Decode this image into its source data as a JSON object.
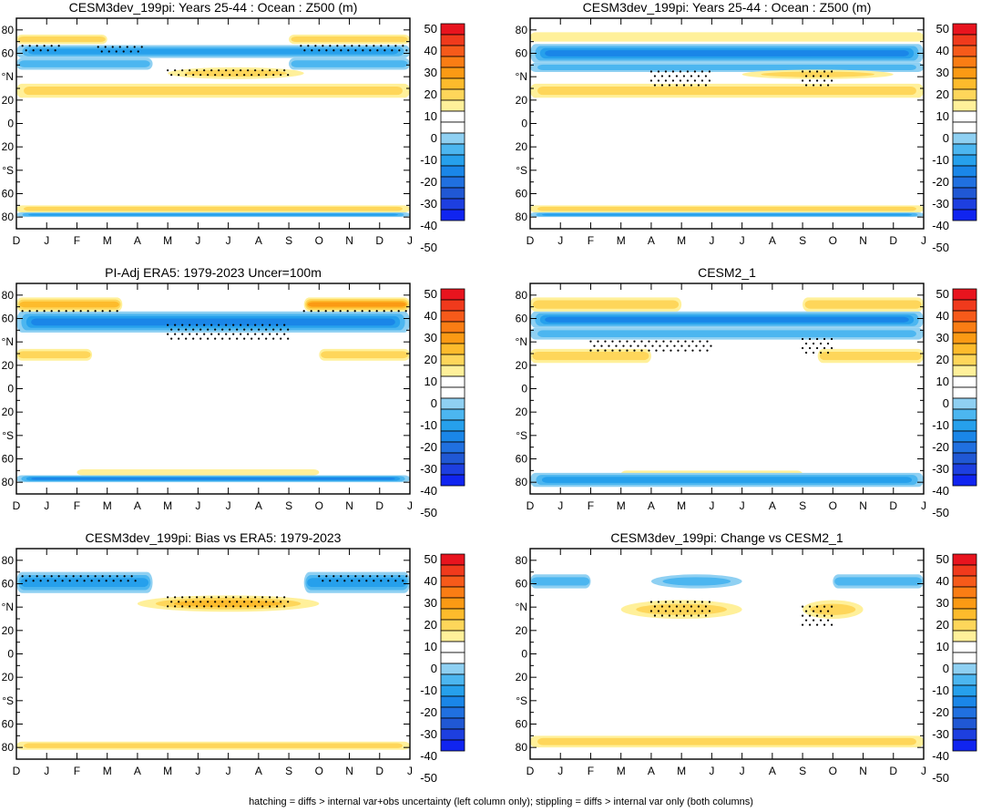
{
  "figure": {
    "footnote": "hatching = diffs > internal var+obs uncertainty (left column only); stippling = diffs > internal var only (both columns)"
  },
  "colorbar": {
    "levels": [
      50,
      40,
      30,
      20,
      10,
      0,
      -10,
      -20,
      -30,
      -40,
      -50
    ],
    "labels": [
      "50",
      "40",
      "30",
      "20",
      "10",
      "0",
      "-10",
      "-20",
      "-30",
      "-40",
      "-50"
    ],
    "colors": [
      "#e8141e",
      "#f03a1c",
      "#f65a1a",
      "#fa7d14",
      "#fb9a14",
      "#fdbb2c",
      "#fed65a",
      "#fff09a",
      "#ffffff",
      "#ffffff",
      "#8fd0f2",
      "#4cb6f0",
      "#26a0ec",
      "#1a86e8",
      "#2070e0",
      "#2058d4",
      "#1d3fe0",
      "#1024f0"
    ]
  },
  "axes": {
    "x_labels": [
      "D",
      "J",
      "F",
      "M",
      "A",
      "M",
      "J",
      "J",
      "A",
      "S",
      "O",
      "N",
      "D",
      "J"
    ],
    "y_labels": [
      "80",
      "60",
      "°N",
      "20",
      "0",
      "20",
      "°S",
      "60",
      "80"
    ]
  },
  "chart_data": [
    {
      "type": "heatmap",
      "id": "p1",
      "title": "CESM3dev_199pi: Years 25-44 : Ocean : Z500 (m)",
      "xlabel": "",
      "ylabel": "",
      "ylim": [
        -90,
        90
      ],
      "features": [
        {
          "kind": "band",
          "lat_lo": 56,
          "lat_hi": 67,
          "sign": -1,
          "intensity": 0.55,
          "m_lo": 0,
          "m_hi": 13
        },
        {
          "kind": "band",
          "lat_lo": 46,
          "lat_hi": 56,
          "sign": -1,
          "intensity": 0.35,
          "m_lo": 0,
          "m_hi": 4.5
        },
        {
          "kind": "band",
          "lat_lo": 46,
          "lat_hi": 56,
          "sign": -1,
          "intensity": 0.35,
          "m_lo": 9,
          "m_hi": 13
        },
        {
          "kind": "band",
          "lat_lo": 68,
          "lat_hi": 76,
          "sign": 1,
          "intensity": 0.25,
          "m_lo": 0,
          "m_hi": 3
        },
        {
          "kind": "band",
          "lat_lo": 68,
          "lat_hi": 76,
          "sign": 1,
          "intensity": 0.25,
          "m_lo": 9,
          "m_hi": 13
        },
        {
          "kind": "band",
          "lat_lo": 22,
          "lat_hi": 34,
          "sign": 1,
          "intensity": 0.3,
          "m_lo": 0,
          "m_hi": 13
        },
        {
          "kind": "blob",
          "lat_lo": 38,
          "lat_hi": 48,
          "sign": 1,
          "intensity": 0.3,
          "m_lo": 5,
          "m_hi": 9.5
        },
        {
          "kind": "band",
          "lat_lo": -76,
          "lat_hi": -70,
          "sign": 1,
          "intensity": 0.25,
          "m_lo": 0,
          "m_hi": 13
        },
        {
          "kind": "band",
          "lat_lo": -80,
          "lat_hi": -76,
          "sign": -1,
          "intensity": 0.55,
          "m_lo": 0,
          "m_hi": 13
        }
      ],
      "stipple": [
        {
          "m_lo": 0.2,
          "m_hi": 1.5,
          "lat_lo": 60,
          "lat_hi": 68
        },
        {
          "m_lo": 2.7,
          "m_hi": 4.2,
          "lat_lo": 60,
          "lat_hi": 67
        },
        {
          "m_lo": 5,
          "m_hi": 9,
          "lat_lo": 38,
          "lat_hi": 47
        },
        {
          "m_lo": 9.4,
          "m_hi": 13,
          "lat_lo": 60,
          "lat_hi": 68
        }
      ]
    },
    {
      "type": "heatmap",
      "id": "p2",
      "title": "CESM3dev_199pi: Years 25-44 : Ocean : Z500 (m)",
      "xlabel": "",
      "ylabel": "",
      "ylim": [
        -90,
        90
      ],
      "features": [
        {
          "kind": "band",
          "lat_lo": 52,
          "lat_hi": 68,
          "sign": -1,
          "intensity": 0.6,
          "m_lo": 0,
          "m_hi": 13
        },
        {
          "kind": "band",
          "lat_lo": 44,
          "lat_hi": 52,
          "sign": -1,
          "intensity": 0.35,
          "m_lo": 0,
          "m_hi": 13
        },
        {
          "kind": "band",
          "lat_lo": 70,
          "lat_hi": 78,
          "sign": 1,
          "intensity": 0.2,
          "m_lo": 0,
          "m_hi": 13
        },
        {
          "kind": "band",
          "lat_lo": 22,
          "lat_hi": 34,
          "sign": 1,
          "intensity": 0.3,
          "m_lo": 0,
          "m_hi": 13
        },
        {
          "kind": "blob",
          "lat_lo": 38,
          "lat_hi": 46,
          "sign": 1,
          "intensity": 0.25,
          "m_lo": 7,
          "m_hi": 12
        },
        {
          "kind": "band",
          "lat_lo": -76,
          "lat_hi": -70,
          "sign": 1,
          "intensity": 0.25,
          "m_lo": 0,
          "m_hi": 13
        },
        {
          "kind": "band",
          "lat_lo": -80,
          "lat_hi": -76,
          "sign": -1,
          "intensity": 0.55,
          "m_lo": 0,
          "m_hi": 13
        }
      ],
      "stipple": [
        {
          "m_lo": 4,
          "m_hi": 6,
          "lat_lo": 30,
          "lat_hi": 46
        },
        {
          "m_lo": 9,
          "m_hi": 10,
          "lat_lo": 30,
          "lat_hi": 46
        }
      ]
    },
    {
      "type": "heatmap",
      "id": "p3",
      "title": "PI-Adj ERA5: 1979-2023 Uncer=100m",
      "xlabel": "",
      "ylabel": "",
      "ylim": [
        -90,
        90
      ],
      "features": [
        {
          "kind": "band",
          "lat_lo": 48,
          "lat_hi": 66,
          "sign": -1,
          "intensity": 0.65,
          "m_lo": 0,
          "m_hi": 13
        },
        {
          "kind": "band",
          "lat_lo": 66,
          "lat_hi": 78,
          "sign": 1,
          "intensity": 0.5,
          "m_lo": 0,
          "m_hi": 3.5
        },
        {
          "kind": "band",
          "lat_lo": 66,
          "lat_hi": 78,
          "sign": 1,
          "intensity": 0.6,
          "m_lo": 9.5,
          "m_hi": 13
        },
        {
          "kind": "band",
          "lat_lo": 24,
          "lat_hi": 34,
          "sign": 1,
          "intensity": 0.3,
          "m_lo": 0,
          "m_hi": 2.5
        },
        {
          "kind": "band",
          "lat_lo": 24,
          "lat_hi": 34,
          "sign": 1,
          "intensity": 0.3,
          "m_lo": 10,
          "m_hi": 13
        },
        {
          "kind": "band",
          "lat_lo": -74,
          "lat_hi": -69,
          "sign": 1,
          "intensity": 0.2,
          "m_lo": 2,
          "m_hi": 10
        },
        {
          "kind": "band",
          "lat_lo": -80,
          "lat_hi": -74,
          "sign": -1,
          "intensity": 0.6,
          "m_lo": 0,
          "m_hi": 13
        }
      ],
      "stipple": [
        {
          "m_lo": 0.2,
          "m_hi": 3.5,
          "lat_lo": 64,
          "lat_hi": 68
        },
        {
          "m_lo": 5,
          "m_hi": 9,
          "lat_lo": 42,
          "lat_hi": 56
        },
        {
          "m_lo": 9.5,
          "m_hi": 13,
          "lat_lo": 64,
          "lat_hi": 68
        }
      ]
    },
    {
      "type": "heatmap",
      "id": "p4",
      "title": "CESM2_1",
      "xlabel": "",
      "ylabel": "",
      "ylim": [
        -90,
        90
      ],
      "features": [
        {
          "kind": "band",
          "lat_lo": 52,
          "lat_hi": 66,
          "sign": -1,
          "intensity": 0.6,
          "m_lo": 0,
          "m_hi": 13
        },
        {
          "kind": "band",
          "lat_lo": 42,
          "lat_hi": 52,
          "sign": -1,
          "intensity": 0.3,
          "m_lo": 0,
          "m_hi": 13
        },
        {
          "kind": "band",
          "lat_lo": 66,
          "lat_hi": 78,
          "sign": 1,
          "intensity": 0.3,
          "m_lo": 0,
          "m_hi": 5
        },
        {
          "kind": "band",
          "lat_lo": 66,
          "lat_hi": 78,
          "sign": 1,
          "intensity": 0.3,
          "m_lo": 9,
          "m_hi": 13
        },
        {
          "kind": "band",
          "lat_lo": 22,
          "lat_hi": 34,
          "sign": 1,
          "intensity": 0.3,
          "m_lo": 0,
          "m_hi": 4
        },
        {
          "kind": "band",
          "lat_lo": 22,
          "lat_hi": 34,
          "sign": 1,
          "intensity": 0.3,
          "m_lo": 9.5,
          "m_hi": 13
        },
        {
          "kind": "band",
          "lat_lo": -76,
          "lat_hi": -70,
          "sign": 1,
          "intensity": 0.2,
          "m_lo": 3,
          "m_hi": 9
        },
        {
          "kind": "band",
          "lat_lo": -84,
          "lat_hi": -72,
          "sign": -1,
          "intensity": 0.45,
          "m_lo": 0,
          "m_hi": 13
        }
      ],
      "stipple": [
        {
          "m_lo": 2,
          "m_hi": 6,
          "lat_lo": 30,
          "lat_hi": 42
        },
        {
          "m_lo": 9,
          "m_hi": 10,
          "lat_lo": 28,
          "lat_hi": 44
        }
      ]
    },
    {
      "type": "heatmap",
      "id": "p5",
      "title": "CESM3dev_199pi: Bias vs ERA5: 1979-2023",
      "xlabel": "",
      "ylabel": "",
      "ylim": [
        -90,
        90
      ],
      "features": [
        {
          "kind": "band",
          "lat_lo": 52,
          "lat_hi": 70,
          "sign": -1,
          "intensity": 0.45,
          "m_lo": 0,
          "m_hi": 4.5
        },
        {
          "kind": "band",
          "lat_lo": 52,
          "lat_hi": 70,
          "sign": -1,
          "intensity": 0.45,
          "m_lo": 9.5,
          "m_hi": 13
        },
        {
          "kind": "blob",
          "lat_lo": 36,
          "lat_hi": 50,
          "sign": 1,
          "intensity": 0.45,
          "m_lo": 4,
          "m_hi": 10
        },
        {
          "kind": "band",
          "lat_lo": -82,
          "lat_hi": -75,
          "sign": 1,
          "intensity": 0.3,
          "m_lo": 0,
          "m_hi": 13
        }
      ],
      "stipple": [
        {
          "m_lo": 0.2,
          "m_hi": 4,
          "lat_lo": 62,
          "lat_hi": 68
        },
        {
          "m_lo": 5,
          "m_hi": 9,
          "lat_lo": 38,
          "lat_hi": 50
        },
        {
          "m_lo": 10,
          "m_hi": 13,
          "lat_lo": 62,
          "lat_hi": 68
        }
      ]
    },
    {
      "type": "heatmap",
      "id": "p6",
      "title": "CESM3dev_199pi: Change vs CESM2_1",
      "xlabel": "",
      "ylabel": "",
      "ylim": [
        -90,
        90
      ],
      "features": [
        {
          "kind": "band",
          "lat_lo": 56,
          "lat_hi": 68,
          "sign": -1,
          "intensity": 0.35,
          "m_lo": 0,
          "m_hi": 2
        },
        {
          "kind": "blob",
          "lat_lo": 56,
          "lat_hi": 68,
          "sign": -1,
          "intensity": 0.3,
          "m_lo": 4,
          "m_hi": 7
        },
        {
          "kind": "band",
          "lat_lo": 56,
          "lat_hi": 68,
          "sign": -1,
          "intensity": 0.35,
          "m_lo": 10,
          "m_hi": 13
        },
        {
          "kind": "blob",
          "lat_lo": 30,
          "lat_hi": 46,
          "sign": 1,
          "intensity": 0.3,
          "m_lo": 3,
          "m_hi": 7
        },
        {
          "kind": "blob",
          "lat_lo": 30,
          "lat_hi": 46,
          "sign": 1,
          "intensity": 0.3,
          "m_lo": 9,
          "m_hi": 11
        },
        {
          "kind": "band",
          "lat_lo": -80,
          "lat_hi": -70,
          "sign": 1,
          "intensity": 0.4,
          "m_lo": 0,
          "m_hi": 13
        }
      ],
      "stipple": [
        {
          "m_lo": 4,
          "m_hi": 6,
          "lat_lo": 30,
          "lat_hi": 46
        },
        {
          "m_lo": 9,
          "m_hi": 10,
          "lat_lo": 24,
          "lat_hi": 42
        }
      ]
    }
  ]
}
